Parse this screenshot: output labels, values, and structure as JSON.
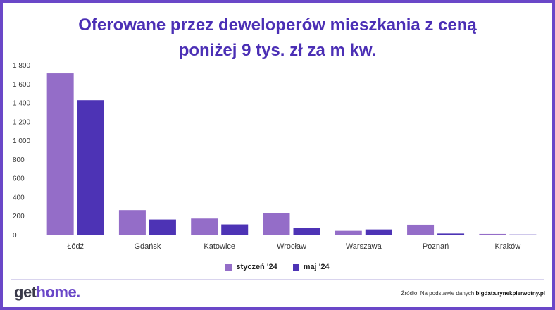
{
  "chart_data": {
    "type": "bar",
    "title_line1": "Oferowane przez deweloperów mieszkania z ceną",
    "title_line2": "poniżej 9 tys. zł za m kw.",
    "categories": [
      "Łódź",
      "Gdańsk",
      "Katowice",
      "Wrocław",
      "Warszawa",
      "Poznań",
      "Kraków"
    ],
    "series": [
      {
        "name": "styczeń '24",
        "color": "#946dc8",
        "values": [
          1710,
          260,
          170,
          230,
          40,
          105,
          8
        ]
      },
      {
        "name": "maj '24",
        "color": "#4d33b5",
        "values": [
          1425,
          160,
          108,
          72,
          55,
          12,
          2
        ]
      }
    ],
    "yticks": [
      "0",
      "200",
      "400",
      "600",
      "800",
      "1 000",
      "1 200",
      "1 400",
      "1 600",
      "1 800"
    ],
    "ylim": [
      0,
      1800
    ],
    "grid": false,
    "legend_position": "bottom"
  },
  "footer": {
    "brand_part1": "get",
    "brand_part2": "home.",
    "source_prefix": "Źródło: Na podstawie danych ",
    "source_site": "bigdata.rynekpierwotny.pl"
  }
}
